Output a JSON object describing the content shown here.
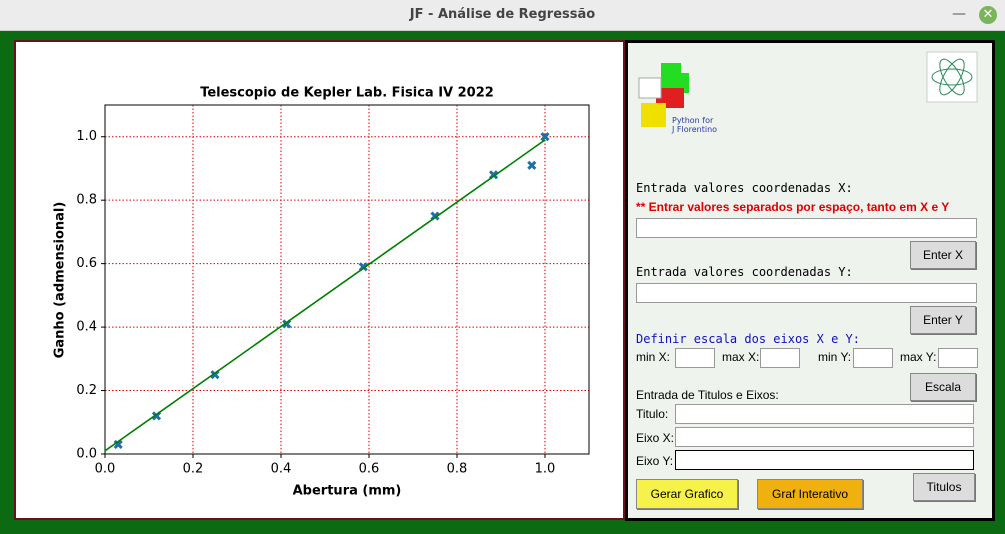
{
  "window": {
    "title": "JF - Análise de Regressão"
  },
  "chart_data": {
    "type": "scatter",
    "title": "Telescopio de Kepler Lab. Fisica IV 2022",
    "x_label": "Abertura (mm)",
    "y_label": "Ganho (admensional)",
    "series": [
      {
        "type": "scatter",
        "marker": "x",
        "color": "#1f6fa8",
        "x": [
          0.03,
          0.117,
          0.25,
          0.413,
          0.587,
          0.75,
          0.883,
          0.97,
          1.0
        ],
        "values": [
          0.03,
          0.12,
          0.25,
          0.41,
          0.59,
          0.75,
          0.88,
          0.91,
          1.0
        ]
      },
      {
        "type": "line",
        "color": "#008000",
        "x": [
          0,
          1.0
        ],
        "values": [
          0.01,
          0.99
        ]
      }
    ],
    "xlim": [
      0,
      1.1
    ],
    "ylim": [
      0,
      1.1
    ],
    "xticks": [
      {
        "value": 0,
        "label": "0.0"
      },
      0.2,
      0.4,
      0.6,
      0.8,
      {
        "value": 1,
        "label": "1.0"
      }
    ],
    "yticks": [
      {
        "value": 0,
        "label": "0.0"
      },
      0.2,
      0.4,
      0.6,
      0.8,
      {
        "value": 1,
        "label": "1.0"
      }
    ],
    "grid": true,
    "grid_color": "#e00000"
  },
  "panel": {
    "logo_text": [
      "Python for",
      "J Florentino"
    ],
    "x_entry": {
      "label": "Entrada valores coordenadas X:",
      "hint": "** Entrar valores separados por espaço, tanto em X e Y",
      "button": "Enter X"
    },
    "y_entry": {
      "label": "Entrada valores coordenadas Y:",
      "button": "Enter Y"
    },
    "scale": {
      "heading": "Definir escala dos eixos X e Y:",
      "fields": [
        "min X:",
        "max X:",
        "min Y:",
        "max Y:"
      ],
      "button": "Escala"
    },
    "titles": {
      "heading": "Entrada de Titulos e Eixos:",
      "fields": [
        "Titulo:",
        "Eixo X:",
        "Eixo Y:"
      ],
      "button": "Titulos"
    },
    "actions": [
      "Gerar Grafico",
      "Graf Interativo"
    ]
  }
}
